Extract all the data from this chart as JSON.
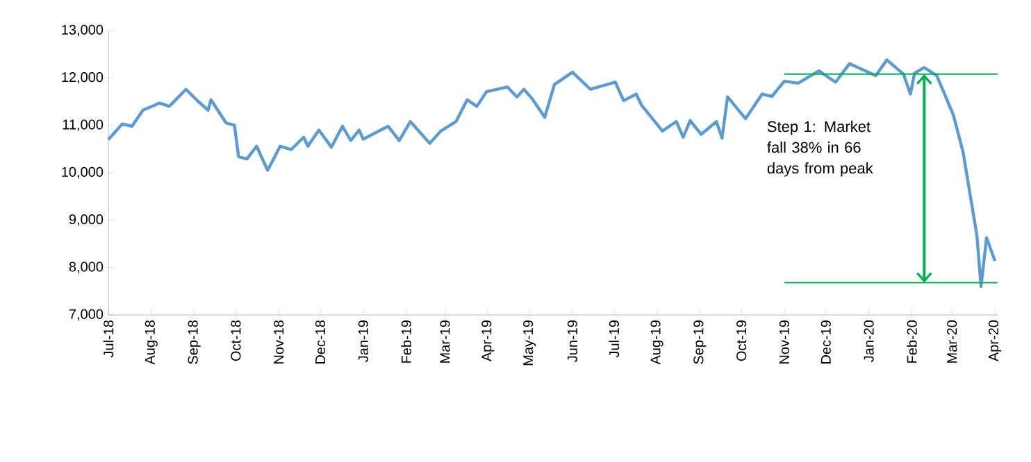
{
  "chart_data": {
    "type": "line",
    "x": [
      "2018-07-01",
      "2018-07-11",
      "2018-07-18",
      "2018-07-26",
      "2018-08-07",
      "2018-08-14",
      "2018-08-26",
      "2018-09-04",
      "2018-09-11",
      "2018-09-13",
      "2018-09-24",
      "2018-09-30",
      "2018-10-03",
      "2018-10-09",
      "2018-10-16",
      "2018-10-24",
      "2018-11-02",
      "2018-11-10",
      "2018-11-19",
      "2018-11-22",
      "2018-11-30",
      "2018-12-09",
      "2018-12-17",
      "2018-12-23",
      "2018-12-29",
      "2019-01-01",
      "2019-01-19",
      "2019-01-27",
      "2019-02-04",
      "2019-02-18",
      "2019-02-26",
      "2019-03-09",
      "2019-03-17",
      "2019-03-24",
      "2019-03-31",
      "2019-04-15",
      "2019-04-22",
      "2019-04-27",
      "2019-05-03",
      "2019-05-12",
      "2019-05-19",
      "2019-06-01",
      "2019-06-14",
      "2019-07-02",
      "2019-07-08",
      "2019-07-17",
      "2019-07-21",
      "2019-08-05",
      "2019-08-15",
      "2019-08-20",
      "2019-08-25",
      "2019-09-02",
      "2019-09-13",
      "2019-09-17",
      "2019-09-21",
      "2019-10-04",
      "2019-10-16",
      "2019-10-23",
      "2019-11-01",
      "2019-11-11",
      "2019-11-26",
      "2019-12-08",
      "2019-12-18",
      "2020-01-06",
      "2020-01-14",
      "2020-01-26",
      "2020-01-31",
      "2020-02-03",
      "2020-02-10",
      "2020-02-19",
      "2020-03-02",
      "2020-03-09",
      "2020-03-14",
      "2020-03-19",
      "2020-03-22",
      "2020-03-26",
      "2020-04-01"
    ],
    "series": [
      {
        "color": "#5b9bd5",
        "values": [
          10700,
          11030,
          10980,
          11320,
          11470,
          11400,
          11760,
          11500,
          11320,
          11540,
          11050,
          11000,
          10340,
          10290,
          10560,
          10050,
          10560,
          10490,
          10750,
          10560,
          10900,
          10540,
          10980,
          10680,
          10900,
          10710,
          10980,
          10680,
          11080,
          10620,
          10880,
          11080,
          11540,
          11400,
          11710,
          11810,
          11600,
          11760,
          11560,
          11170,
          11860,
          12120,
          11760,
          11910,
          11520,
          11660,
          11420,
          10880,
          11080,
          10750,
          11100,
          10810,
          11080,
          10730,
          11600,
          11140,
          11660,
          11610,
          11930,
          11890,
          12150,
          11910,
          12300,
          12050,
          12380,
          12080,
          11660,
          12100,
          12220,
          12050,
          11220,
          10440,
          9560,
          8680,
          7600,
          8630,
          8140
        ]
      }
    ],
    "xlim": [
      "2018-07-01",
      "2020-04-03"
    ],
    "xticks": [
      {
        "value": "2018-07-01",
        "label": "Jul-18"
      },
      {
        "value": "2018-08-01",
        "label": "Aug-18"
      },
      {
        "value": "2018-09-01",
        "label": "Sep-18"
      },
      {
        "value": "2018-10-01",
        "label": "Oct-18"
      },
      {
        "value": "2018-11-01",
        "label": "Nov-18"
      },
      {
        "value": "2018-12-01",
        "label": "Dec-18"
      },
      {
        "value": "2019-01-01",
        "label": "Jan-19"
      },
      {
        "value": "2019-02-01",
        "label": "Feb-19"
      },
      {
        "value": "2019-03-01",
        "label": "Mar-19"
      },
      {
        "value": "2019-04-01",
        "label": "Apr-19"
      },
      {
        "value": "2019-05-01",
        "label": "May-19"
      },
      {
        "value": "2019-06-01",
        "label": "Jun-19"
      },
      {
        "value": "2019-07-01",
        "label": "Jul-19"
      },
      {
        "value": "2019-08-01",
        "label": "Aug-19"
      },
      {
        "value": "2019-09-01",
        "label": "Sep-19"
      },
      {
        "value": "2019-10-01",
        "label": "Oct-19"
      },
      {
        "value": "2019-11-01",
        "label": "Nov-19"
      },
      {
        "value": "2019-12-01",
        "label": "Dec-19"
      },
      {
        "value": "2020-01-01",
        "label": "Jan-20"
      },
      {
        "value": "2020-02-01",
        "label": "Feb-20"
      },
      {
        "value": "2020-03-01",
        "label": "Mar-20"
      },
      {
        "value": "2020-04-01",
        "label": "Apr-20"
      }
    ],
    "ylim": [
      7000,
      13000
    ],
    "yticks": [
      {
        "value": 7000,
        "label": "7,000"
      },
      {
        "value": 8000,
        "label": "8,000"
      },
      {
        "value": 9000,
        "label": "9,000"
      },
      {
        "value": 10000,
        "label": "10,000"
      },
      {
        "value": 11000,
        "label": "11,000"
      },
      {
        "value": 12000,
        "label": "12,000"
      },
      {
        "value": 13000,
        "label": "13,000"
      }
    ],
    "ref_lines": [
      {
        "axis": "y",
        "value": 12080,
        "color": "#00b050"
      },
      {
        "axis": "y",
        "value": 7680,
        "color": "#00b050"
      }
    ],
    "annotations": [
      "Step 1: Market fall 38% in 66 days from peak"
    ],
    "grid": false,
    "legend": false,
    "marker": "none",
    "line_style": "solid"
  }
}
